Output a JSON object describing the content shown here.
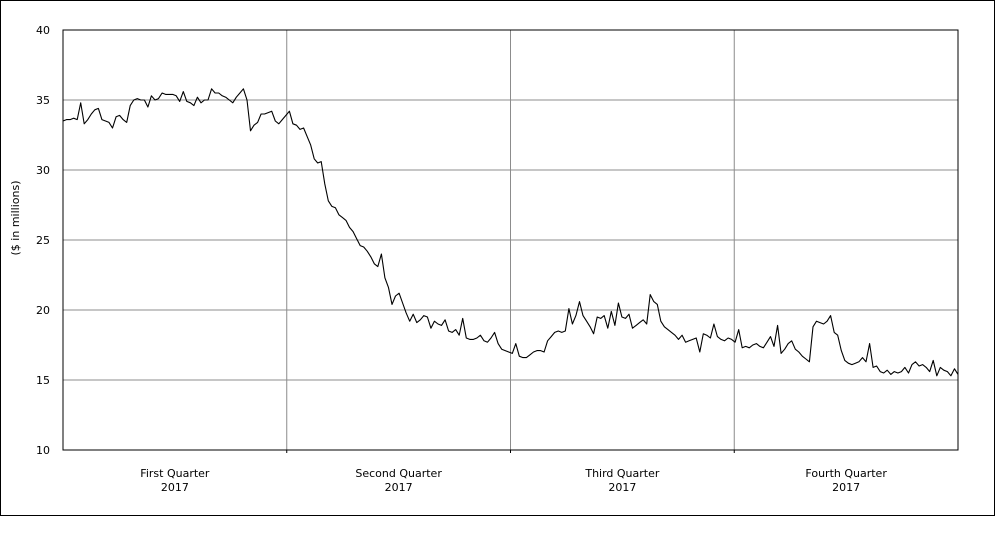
{
  "chart_data": {
    "type": "line",
    "title": "",
    "xlabel": "",
    "ylabel": "($ in millions)",
    "ylim": [
      10,
      40
    ],
    "yticks": [
      10,
      15,
      20,
      25,
      30,
      35,
      40
    ],
    "grid": true,
    "quarters": [
      {
        "line1": "First Quarter",
        "line2": "2017"
      },
      {
        "line1": "Second Quarter",
        "line2": "2017"
      },
      {
        "line1": "Third Quarter",
        "line2": "2017"
      },
      {
        "line1": "Fourth Quarter",
        "line2": "2017"
      }
    ],
    "series": [
      {
        "color": "#000000",
        "values": [
          33.5,
          33.6,
          33.6,
          33.7,
          33.6,
          34.8,
          33.3,
          33.6,
          34.0,
          34.3,
          34.4,
          33.6,
          33.5,
          33.4,
          33.0,
          33.8,
          33.9,
          33.6,
          33.4,
          34.6,
          35.0,
          35.1,
          35.0,
          35.0,
          34.5,
          35.3,
          35.0,
          35.1,
          35.5,
          35.4,
          35.4,
          35.4,
          35.3,
          34.9,
          35.6,
          34.9,
          34.8,
          34.6,
          35.2,
          34.8,
          35.0,
          35.0,
          35.8,
          35.5,
          35.5,
          35.3,
          35.2,
          35.0,
          34.8,
          35.2,
          35.5,
          35.8,
          35.0,
          32.8,
          33.2,
          33.4,
          34.0,
          34.0,
          34.1,
          34.2,
          33.5,
          33.3,
          33.6,
          33.9,
          34.2,
          33.3,
          33.2,
          32.9,
          33.0,
          32.4,
          31.8,
          30.8,
          30.5,
          30.6,
          29.0,
          27.8,
          27.4,
          27.3,
          26.8,
          26.6,
          26.4,
          25.9,
          25.6,
          25.1,
          24.6,
          24.5,
          24.2,
          23.8,
          23.3,
          23.1,
          24.0,
          22.3,
          21.6,
          20.4,
          21.0,
          21.2,
          20.5,
          19.8,
          19.2,
          19.7,
          19.1,
          19.3,
          19.6,
          19.5,
          18.7,
          19.2,
          19.0,
          18.9,
          19.3,
          18.5,
          18.4,
          18.6,
          18.2,
          19.4,
          18.0,
          17.9,
          17.9,
          18.0,
          18.2,
          17.8,
          17.7,
          18.0,
          18.4,
          17.6,
          17.2,
          17.1,
          17.0,
          16.9,
          17.6,
          16.7,
          16.6,
          16.6,
          16.8,
          17.0,
          17.1,
          17.1,
          17.0,
          17.8,
          18.1,
          18.4,
          18.5,
          18.4,
          18.5,
          20.1,
          19.0,
          19.6,
          20.6,
          19.6,
          19.2,
          18.8,
          18.3,
          19.5,
          19.4,
          19.6,
          18.7,
          19.9,
          18.9,
          20.5,
          19.5,
          19.4,
          19.7,
          18.7,
          18.9,
          19.1,
          19.3,
          19.0,
          21.1,
          20.6,
          20.4,
          19.2,
          18.8,
          18.6,
          18.4,
          18.2,
          17.9,
          18.2,
          17.7,
          17.8,
          17.9,
          18.0,
          17.0,
          18.3,
          18.2,
          18.0,
          19.0,
          18.1,
          17.9,
          17.8,
          18.0,
          17.9,
          17.7,
          18.6,
          17.3,
          17.4,
          17.3,
          17.5,
          17.6,
          17.4,
          17.3,
          17.7,
          18.1,
          17.4,
          18.9,
          16.9,
          17.2,
          17.6,
          17.8,
          17.2,
          17.0,
          16.7,
          16.5,
          16.3,
          18.8,
          19.2,
          19.1,
          19.0,
          19.2,
          19.6,
          18.4,
          18.2,
          17.1,
          16.4,
          16.2,
          16.1,
          16.2,
          16.3,
          16.6,
          16.3,
          17.6,
          15.9,
          16.0,
          15.6,
          15.5,
          15.7,
          15.4,
          15.6,
          15.5,
          15.6,
          15.9,
          15.5,
          16.1,
          16.3,
          16.0,
          16.1,
          15.9,
          15.6,
          16.4,
          15.3,
          15.9,
          15.7,
          15.6,
          15.3,
          15.8,
          15.4
        ]
      }
    ]
  }
}
